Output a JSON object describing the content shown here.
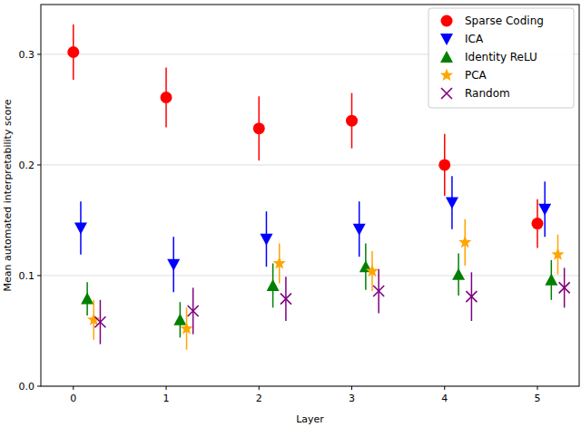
{
  "chart_data": {
    "type": "scatter",
    "x_label": "Layer",
    "y_label": "Mean automated interpretability score",
    "xlim": [
      -0.35,
      5.45
    ],
    "ylim": [
      0,
      0.345
    ],
    "xticks": [
      0,
      1,
      2,
      3,
      4,
      5
    ],
    "yticks": [
      {
        "value": 0,
        "label": "0.0"
      },
      0.1,
      0.2,
      0.3
    ],
    "grid": true,
    "legend": "upper right",
    "series": [
      {
        "name": "Sparse Coding",
        "color": "#ff0000",
        "marker": "circle",
        "x": [
          0,
          1,
          2,
          3,
          4,
          5
        ],
        "values": [
          0.302,
          0.261,
          0.233,
          0.24,
          0.2,
          0.147
        ],
        "errors": [
          0.025,
          0.027,
          0.029,
          0.025,
          0.028,
          0.022
        ]
      },
      {
        "name": "ICA",
        "color": "#0000ff",
        "marker": "triangle-down",
        "x": [
          0.08,
          1.08,
          2.08,
          3.08,
          4.08,
          5.08
        ],
        "values": [
          0.143,
          0.11,
          0.133,
          0.142,
          0.166,
          0.16
        ],
        "errors": [
          0.024,
          0.025,
          0.025,
          0.025,
          0.024,
          0.025
        ]
      },
      {
        "name": "Identity ReLU",
        "color": "#008000",
        "marker": "triangle-up",
        "x": [
          0.15,
          1.15,
          2.15,
          3.15,
          4.15,
          5.15
        ],
        "values": [
          0.079,
          0.06,
          0.091,
          0.108,
          0.101,
          0.096
        ],
        "errors": [
          0.015,
          0.016,
          0.02,
          0.021,
          0.019,
          0.018
        ]
      },
      {
        "name": "PCA",
        "color": "#ffa500",
        "marker": "star",
        "x": [
          0.22,
          1.22,
          2.22,
          3.22,
          4.22,
          5.22
        ],
        "values": [
          0.06,
          0.052,
          0.111,
          0.104,
          0.13,
          0.119
        ],
        "errors": [
          0.018,
          0.019,
          0.018,
          0.018,
          0.021,
          0.018
        ]
      },
      {
        "name": "Random",
        "color": "#800080",
        "marker": "x",
        "x": [
          0.29,
          1.29,
          2.29,
          3.29,
          4.29,
          5.29
        ],
        "values": [
          0.058,
          0.068,
          0.079,
          0.086,
          0.081,
          0.089
        ],
        "errors": [
          0.02,
          0.021,
          0.02,
          0.02,
          0.022,
          0.018
        ]
      }
    ]
  }
}
